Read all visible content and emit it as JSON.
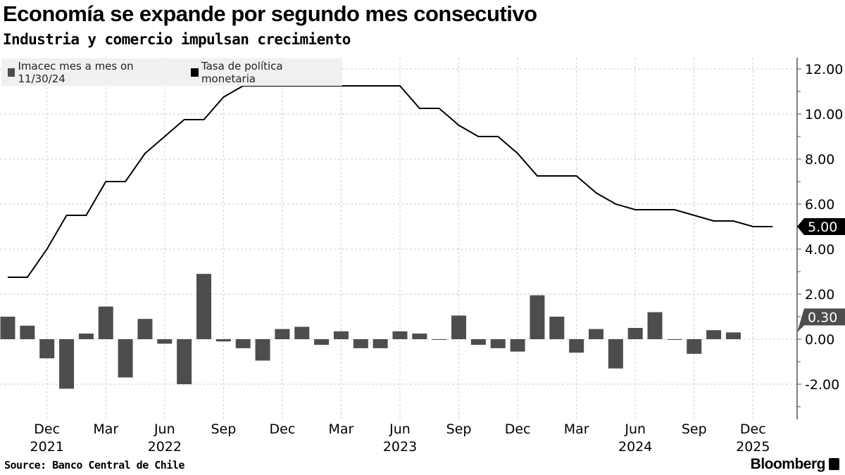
{
  "title": "Economía se expande por segundo mes consecutivo",
  "subtitle": "Industria y comercio impulsan crecimiento",
  "source": "Source: Banco Central de Chile",
  "brand": "Bloomberg",
  "chart_data": {
    "type": "bar+line",
    "legend_position": "top-left",
    "grid": true,
    "ylim": [
      -3.5,
      12.5
    ],
    "y_ticks": [
      "12.00",
      "10.00",
      "8.00",
      "6.00",
      "4.00",
      "2.00",
      "0.00",
      "-2.00"
    ],
    "y_tick_values": [
      12,
      10,
      8,
      6,
      4,
      2,
      0,
      -2
    ],
    "x_tick_labels": [
      {
        "label": "Dec",
        "month": "2021-12",
        "year": "2021"
      },
      {
        "label": "Mar",
        "month": "2022-03"
      },
      {
        "label": "Jun",
        "month": "2022-06",
        "year": "2022"
      },
      {
        "label": "Sep",
        "month": "2022-09"
      },
      {
        "label": "Dec",
        "month": "2022-12"
      },
      {
        "label": "Mar",
        "month": "2023-03"
      },
      {
        "label": "Jun",
        "month": "2023-06",
        "year": "2023"
      },
      {
        "label": "Sep",
        "month": "2023-09"
      },
      {
        "label": "Dec",
        "month": "2023-12"
      },
      {
        "label": "Mar",
        "month": "2024-03"
      },
      {
        "label": "Jun",
        "month": "2024-06",
        "year": "2024"
      },
      {
        "label": "Sep",
        "month": "2024-09"
      },
      {
        "label": "Dec",
        "month": "2024-12",
        "year": "2025"
      }
    ],
    "series": [
      {
        "name": "Imacec mes a mes on 11/30/24",
        "type": "bar",
        "color": "#4d4d4d",
        "last_value_label": "0.30",
        "months": [
          "2021-10",
          "2021-11",
          "2021-12",
          "2022-01",
          "2022-02",
          "2022-03",
          "2022-04",
          "2022-05",
          "2022-06",
          "2022-07",
          "2022-08",
          "2022-09",
          "2022-10",
          "2022-11",
          "2022-12",
          "2023-01",
          "2023-02",
          "2023-03",
          "2023-04",
          "2023-05",
          "2023-06",
          "2023-07",
          "2023-08",
          "2023-09",
          "2023-10",
          "2023-11",
          "2023-12",
          "2024-01",
          "2024-02",
          "2024-03",
          "2024-04",
          "2024-05",
          "2024-06",
          "2024-07",
          "2024-08",
          "2024-09",
          "2024-10",
          "2024-11"
        ],
        "values": [
          1.0,
          0.6,
          -0.85,
          -2.2,
          0.25,
          1.45,
          -1.7,
          0.9,
          -0.2,
          -2.0,
          2.9,
          -0.1,
          -0.4,
          -0.95,
          0.45,
          0.55,
          -0.25,
          0.35,
          -0.4,
          -0.4,
          0.35,
          0.25,
          -0.02,
          1.05,
          -0.25,
          -0.4,
          -0.55,
          1.95,
          1.0,
          -0.6,
          0.45,
          -1.3,
          0.5,
          1.2,
          0.0,
          -0.65,
          0.4,
          0.3
        ]
      },
      {
        "name": "Tasa de política monetaria",
        "type": "line",
        "color": "#000000",
        "last_value_label": "5.00",
        "months": [
          "2021-10",
          "2021-11",
          "2021-12",
          "2022-01",
          "2022-02",
          "2022-03",
          "2022-04",
          "2022-05",
          "2022-06",
          "2022-07",
          "2022-08",
          "2022-09",
          "2022-10",
          "2022-11",
          "2022-12",
          "2023-01",
          "2023-02",
          "2023-03",
          "2023-04",
          "2023-05",
          "2023-06",
          "2023-07",
          "2023-08",
          "2023-09",
          "2023-10",
          "2023-11",
          "2023-12",
          "2024-01",
          "2024-02",
          "2024-03",
          "2024-04",
          "2024-05",
          "2024-06",
          "2024-07",
          "2024-08",
          "2024-09",
          "2024-10",
          "2024-11",
          "2024-12",
          "2025-01"
        ],
        "values": [
          2.75,
          2.75,
          4.0,
          5.5,
          5.5,
          7.0,
          7.0,
          8.25,
          9.0,
          9.75,
          9.75,
          10.75,
          11.25,
          11.25,
          11.25,
          11.25,
          11.25,
          11.25,
          11.25,
          11.25,
          11.25,
          10.25,
          10.25,
          9.5,
          9.0,
          9.0,
          8.25,
          7.25,
          7.25,
          7.25,
          6.5,
          6.0,
          5.75,
          5.75,
          5.75,
          5.5,
          5.25,
          5.25,
          5.0,
          5.0
        ]
      }
    ]
  }
}
